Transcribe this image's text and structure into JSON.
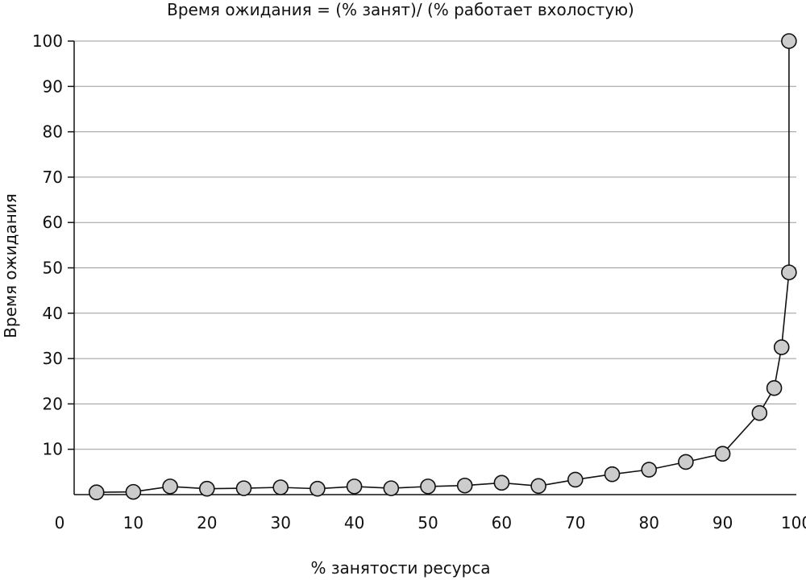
{
  "chart_data": {
    "type": "line",
    "title": "Время ожидания = (% занят)/ (% работает вхолостую)",
    "xlabel": "% занятости ресурса",
    "ylabel": "Время ожидания",
    "xlim": [
      0,
      100
    ],
    "ylim": [
      0,
      100
    ],
    "xticks": [
      0,
      10,
      20,
      30,
      40,
      50,
      60,
      70,
      80,
      90,
      100
    ],
    "yticks": [
      10,
      20,
      30,
      40,
      50,
      60,
      70,
      80,
      90,
      100
    ],
    "grid": "horizontal",
    "marker": "circle",
    "marker_color": "#cccccc",
    "line_color": "#111111",
    "series": [
      {
        "x": [
          5,
          10,
          15,
          20,
          25,
          30,
          35,
          40,
          45,
          50,
          55,
          60,
          65,
          70,
          75,
          80,
          85,
          90,
          95,
          97,
          98,
          99,
          99
        ],
        "y": [
          0.5,
          0.6,
          1.8,
          1.3,
          1.4,
          1.6,
          1.3,
          1.8,
          1.4,
          1.8,
          2.0,
          2.6,
          1.9,
          3.3,
          4.5,
          5.5,
          7.2,
          9.0,
          18.0,
          23.5,
          32.5,
          49.0,
          100
        ]
      }
    ]
  }
}
